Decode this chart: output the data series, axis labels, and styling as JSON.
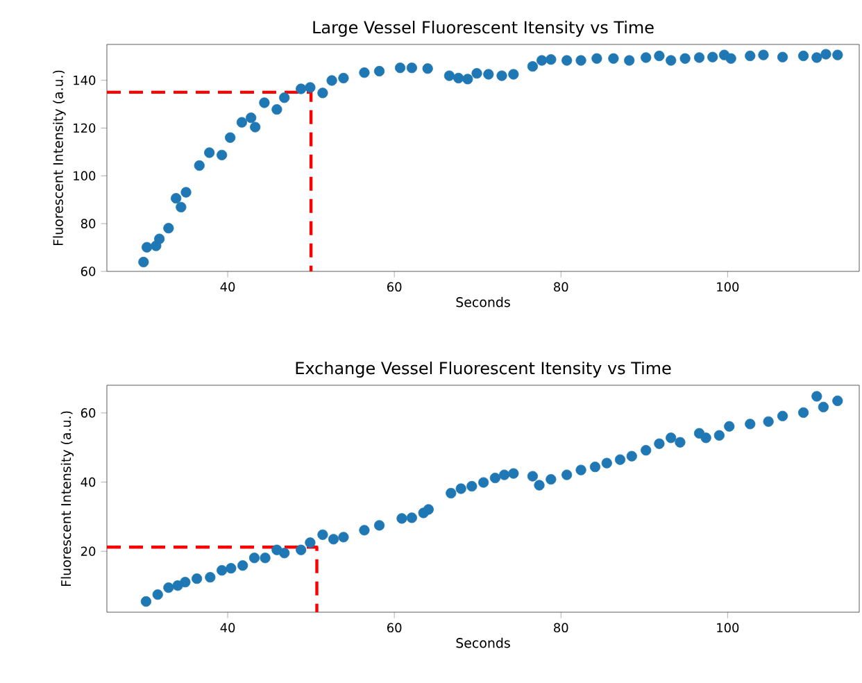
{
  "chart_data": [
    {
      "type": "scatter",
      "title": "Large Vessel Fluorescent Itensity vs Time",
      "xlabel": "Seconds",
      "ylabel": "Fluorescent Intensity (a.u.)",
      "xlim": [
        25.5,
        115.8
      ],
      "ylim": [
        60,
        155
      ],
      "xticks": [
        40,
        60,
        80,
        100
      ],
      "yticks": [
        60,
        80,
        100,
        120,
        140
      ],
      "series": [
        {
          "type": "scatter",
          "marker": "circle",
          "color": "#1f77b4",
          "x": [
            29.9,
            30.3,
            31.4,
            31.8,
            32.9,
            33.8,
            34.4,
            35,
            36.6,
            37.8,
            39.3,
            40.3,
            41.7,
            42.8,
            43.3,
            44.4,
            45.9,
            46.8,
            48.8,
            49.9,
            51.4,
            52.5,
            53.9,
            56.4,
            58.2,
            60.7,
            62.1,
            64,
            66.6,
            67.7,
            68.8,
            69.9,
            71.3,
            72.9,
            74.3,
            76.6,
            77.7,
            78.8,
            80.7,
            82.4,
            84.3,
            86.3,
            88.2,
            90.2,
            91.8,
            93.2,
            94.9,
            96.6,
            98.2,
            99.6,
            100.4,
            102.7,
            104.3,
            106.6,
            109.1,
            110.7,
            111.8,
            113.2
          ],
          "values": [
            63.9,
            70.1,
            70.7,
            73.6,
            78.1,
            90.6,
            86.9,
            93.1,
            104.3,
            109.7,
            108.7,
            116,
            122.4,
            124.3,
            120.4,
            130.6,
            127.8,
            132.7,
            136.4,
            137,
            134.7,
            139.9,
            140.9,
            143.2,
            143.8,
            145.2,
            145.2,
            144.9,
            141.9,
            140.9,
            140.5,
            142.9,
            142.5,
            141.9,
            142.5,
            145.8,
            148.3,
            148.7,
            148.3,
            148.3,
            149.1,
            149.1,
            148.3,
            149.5,
            150.2,
            148.3,
            149.1,
            149.5,
            149.7,
            150.6,
            149.1,
            150.2,
            150.6,
            149.7,
            150.2,
            149.5,
            150.9,
            150.6
          ]
        },
        {
          "type": "line",
          "line_style": "dashed",
          "marker": "none",
          "color": "#ff0000",
          "x": [
            25.5,
            50,
            50
          ],
          "values": [
            135,
            135,
            60
          ]
        }
      ]
    },
    {
      "type": "scatter",
      "title": "Exchange Vessel Fluorescent Itensity vs Time",
      "xlabel": "Seconds",
      "ylabel": "Fluorescent Intensity (a.u.)",
      "xlim": [
        25.5,
        115.8
      ],
      "ylim": [
        2.4,
        68
      ],
      "xticks": [
        40,
        60,
        80,
        100
      ],
      "yticks": [
        20,
        40,
        60
      ],
      "series": [
        {
          "type": "scatter",
          "marker": "circle",
          "color": "#1f77b4",
          "x": [
            30.2,
            31.6,
            32.9,
            34,
            34.9,
            36.3,
            37.9,
            39.3,
            40.4,
            41.8,
            43.2,
            44.5,
            45.9,
            46.8,
            48.8,
            49.9,
            51.4,
            52.7,
            53.9,
            56.4,
            58.2,
            60.9,
            62.1,
            63.5,
            64.1,
            66.8,
            68,
            69.3,
            70.7,
            72.1,
            73.2,
            74.3,
            76.6,
            77.4,
            78.8,
            80.7,
            82.4,
            84.1,
            85.5,
            87.1,
            88.5,
            90.2,
            91.8,
            93.2,
            94.3,
            96.6,
            97.4,
            99,
            100.2,
            102.7,
            104.9,
            106.6,
            109.1,
            110.7,
            111.5,
            113.2
          ],
          "values": [
            5.5,
            7.5,
            9.5,
            10.1,
            11.1,
            12.1,
            12.5,
            14.5,
            15.1,
            15.9,
            18.1,
            18.1,
            20.4,
            19.5,
            20.4,
            22.5,
            24.8,
            23.5,
            24.1,
            26.1,
            27.5,
            29.5,
            29.7,
            31.1,
            32.1,
            36.8,
            38.1,
            38.8,
            39.9,
            41.2,
            42.1,
            42.5,
            41.7,
            39.1,
            40.8,
            42.1,
            43.5,
            44.4,
            45.5,
            46.5,
            47.5,
            49.2,
            51.1,
            52.8,
            51.5,
            54.1,
            52.8,
            53.5,
            56.1,
            56.8,
            57.5,
            59.1,
            60.1,
            64.8,
            61.7,
            63.5
          ]
        },
        {
          "type": "line",
          "line_style": "dashed",
          "marker": "none",
          "color": "#ff0000",
          "x": [
            25.5,
            50.7,
            50.7
          ],
          "values": [
            21.2,
            21.2,
            2.4
          ]
        }
      ]
    }
  ]
}
